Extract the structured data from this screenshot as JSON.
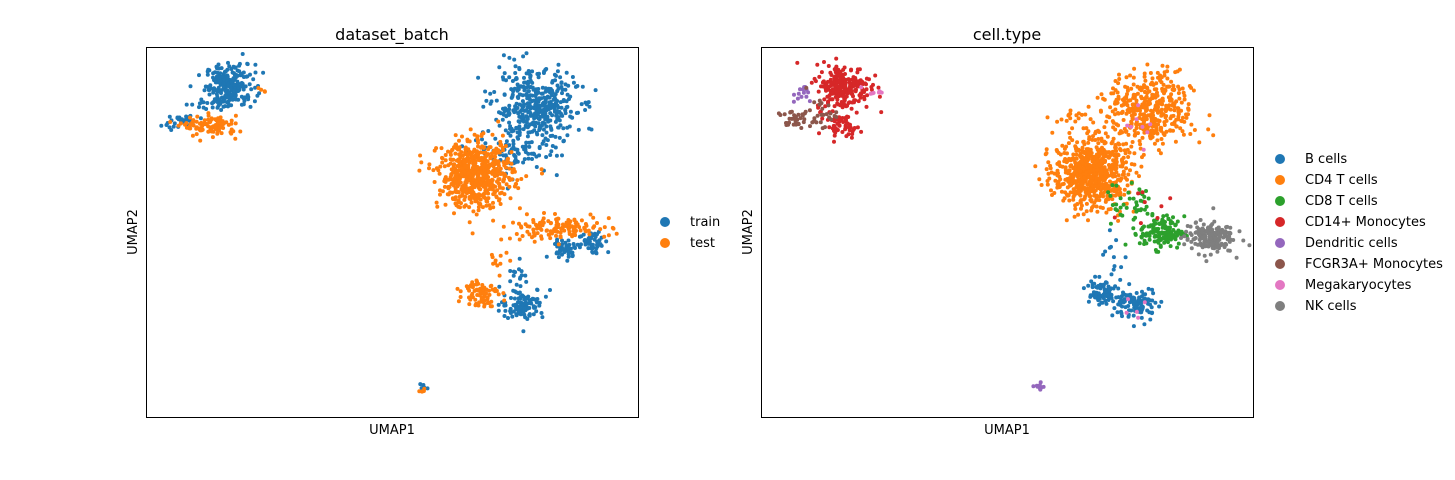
{
  "chart_data": [
    {
      "type": "scatter",
      "title": "dataset_batch",
      "xlabel": "UMAP1",
      "ylabel": "UMAP2",
      "xticks": false,
      "yticks": false,
      "grid": false,
      "legend": "right, outside",
      "xlim": [
        -8,
        12
      ],
      "ylim": [
        -6,
        10
      ],
      "series": [
        {
          "name": "train",
          "color": "#1f77b4",
          "clusters": [
            {
              "x": -4.6,
              "y": 8.4,
              "sx": 0.5,
              "sy": 0.45,
              "n": 220
            },
            {
              "x": -5.6,
              "y": 7.6,
              "sx": 0.4,
              "sy": 0.15,
              "n": 25
            },
            {
              "x": -6.6,
              "y": 6.8,
              "sx": 0.4,
              "sy": 0.15,
              "n": 30
            },
            {
              "x": 7.8,
              "y": 7.4,
              "sx": 0.85,
              "sy": 0.8,
              "n": 430
            },
            {
              "x": 7.0,
              "y": 5.4,
              "sx": 0.9,
              "sy": 0.45,
              "n": 80
            },
            {
              "x": 9.0,
              "y": 1.3,
              "sx": 0.3,
              "sy": 0.2,
              "n": 45
            },
            {
              "x": 10.2,
              "y": 1.6,
              "sx": 0.3,
              "sy": 0.25,
              "n": 55
            },
            {
              "x": 7.3,
              "y": -1.1,
              "sx": 0.45,
              "sy": 0.35,
              "n": 110
            },
            {
              "x": 7.2,
              "y": 0.3,
              "sx": 0.15,
              "sy": 0.5,
              "n": 12
            },
            {
              "x": 3.3,
              "y": -4.7,
              "sx": 0.08,
              "sy": 0.08,
              "n": 6
            }
          ]
        },
        {
          "name": "test",
          "color": "#ff7f0e",
          "clusters": [
            {
              "x": -5.4,
              "y": 6.6,
              "sx": 0.55,
              "sy": 0.22,
              "n": 100
            },
            {
              "x": -3.4,
              "y": 8.2,
              "sx": 0.15,
              "sy": 0.08,
              "n": 4
            },
            {
              "x": 5.4,
              "y": 4.5,
              "sx": 0.75,
              "sy": 0.7,
              "n": 620
            },
            {
              "x": 8.7,
              "y": 2.2,
              "sx": 1.1,
              "sy": 0.25,
              "n": 130
            },
            {
              "x": 5.6,
              "y": -0.6,
              "sx": 0.35,
              "sy": 0.3,
              "n": 80
            },
            {
              "x": 6.3,
              "y": 0.9,
              "sx": 0.2,
              "sy": 0.5,
              "n": 12
            },
            {
              "x": 3.2,
              "y": -4.8,
              "sx": 0.06,
              "sy": 0.06,
              "n": 5
            }
          ]
        }
      ]
    },
    {
      "type": "scatter",
      "title": "cell.type",
      "xlabel": "UMAP1",
      "ylabel": "UMAP2",
      "xticks": false,
      "yticks": false,
      "grid": false,
      "legend": "right, outside",
      "xlim": [
        -8,
        12
      ],
      "ylim": [
        -6,
        10
      ],
      "series": [
        {
          "name": "B cells",
          "color": "#1f77b4",
          "clusters": [
            {
              "x": 5.8,
              "y": -0.6,
              "sx": 0.35,
              "sy": 0.3,
              "n": 80
            },
            {
              "x": 7.3,
              "y": -1.1,
              "sx": 0.45,
              "sy": 0.35,
              "n": 100
            },
            {
              "x": 6.3,
              "y": 0.8,
              "sx": 0.2,
              "sy": 0.5,
              "n": 12
            }
          ]
        },
        {
          "name": "CD4 T cells",
          "color": "#ff7f0e",
          "clusters": [
            {
              "x": 5.4,
              "y": 4.6,
              "sx": 0.75,
              "sy": 0.75,
              "n": 700
            },
            {
              "x": 7.8,
              "y": 7.3,
              "sx": 0.85,
              "sy": 0.8,
              "n": 420
            },
            {
              "x": 4.6,
              "y": 7.0,
              "sx": 0.3,
              "sy": 0.2,
              "n": 15
            }
          ]
        },
        {
          "name": "CD8 T cells",
          "color": "#2ca02c",
          "clusters": [
            {
              "x": 8.3,
              "y": 2.0,
              "sx": 0.45,
              "sy": 0.35,
              "n": 140
            },
            {
              "x": 7.0,
              "y": 3.4,
              "sx": 0.7,
              "sy": 0.6,
              "n": 40
            }
          ]
        },
        {
          "name": "CD14+ Monocytes",
          "color": "#d62728",
          "clusters": [
            {
              "x": -4.7,
              "y": 8.3,
              "sx": 0.55,
              "sy": 0.5,
              "n": 240
            },
            {
              "x": -4.7,
              "y": 6.6,
              "sx": 0.35,
              "sy": 0.22,
              "n": 50
            },
            {
              "x": 7.5,
              "y": 3.3,
              "sx": 0.6,
              "sy": 0.6,
              "n": 8
            }
          ]
        },
        {
          "name": "Dendritic cells",
          "color": "#9467bd",
          "clusters": [
            {
              "x": -6.3,
              "y": 8.0,
              "sx": 0.2,
              "sy": 0.2,
              "n": 14
            },
            {
              "x": 3.3,
              "y": -4.7,
              "sx": 0.1,
              "sy": 0.1,
              "n": 11
            }
          ]
        },
        {
          "name": "FCGR3A+ Monocytes",
          "color": "#8c564b",
          "clusters": [
            {
              "x": -6.6,
              "y": 6.9,
              "sx": 0.4,
              "sy": 0.2,
              "n": 40
            },
            {
              "x": -5.6,
              "y": 7.2,
              "sx": 0.3,
              "sy": 0.3,
              "n": 20
            }
          ]
        },
        {
          "name": "Megakaryocytes",
          "color": "#e377c2",
          "clusters": [
            {
              "x": -3.5,
              "y": 8.1,
              "sx": 0.3,
              "sy": 0.1,
              "n": 8
            },
            {
              "x": 7.5,
              "y": 6.6,
              "sx": 0.3,
              "sy": 0.4,
              "n": 8
            },
            {
              "x": 7.4,
              "y": -1.2,
              "sx": 0.3,
              "sy": 0.3,
              "n": 5
            }
          ]
        },
        {
          "name": "NK cells",
          "color": "#7f7f7f",
          "clusters": [
            {
              "x": 10.2,
              "y": 1.8,
              "sx": 0.5,
              "sy": 0.35,
              "n": 170
            }
          ]
        }
      ]
    }
  ]
}
